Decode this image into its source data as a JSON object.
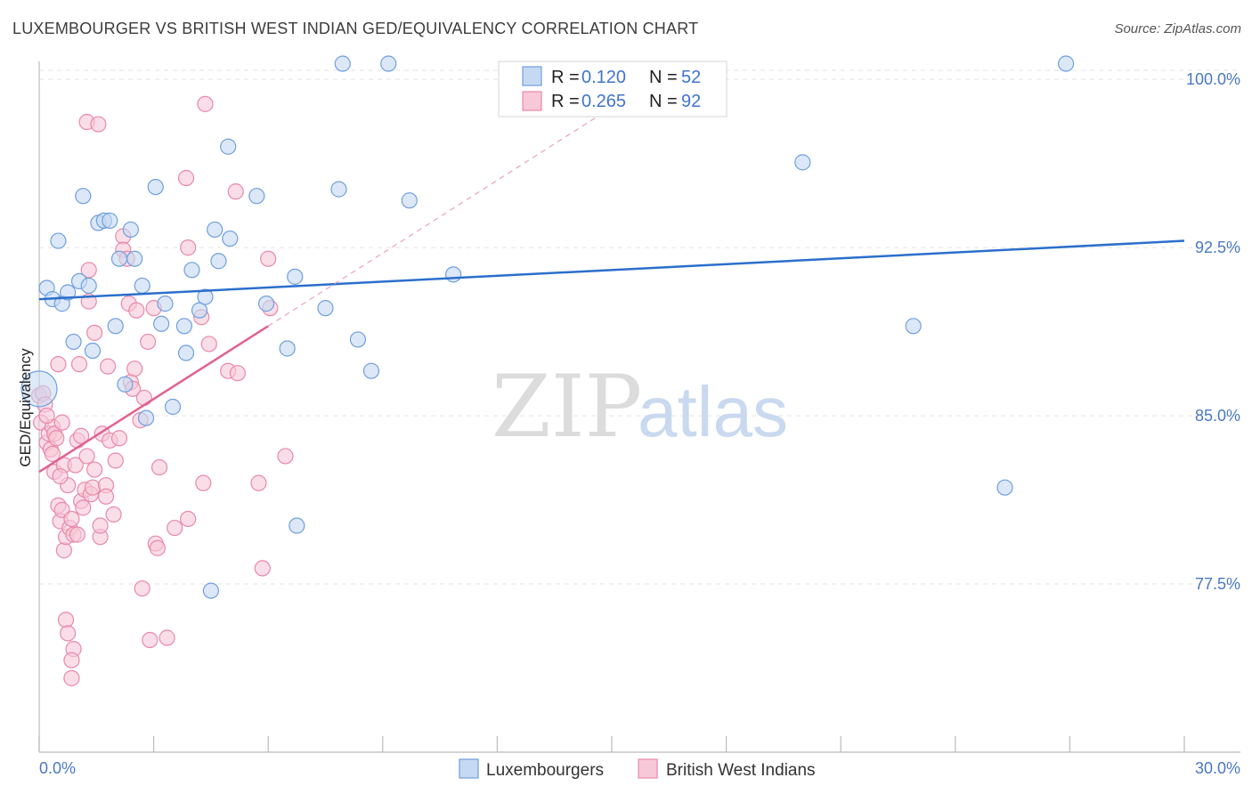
{
  "title": "LUXEMBOURGER VS BRITISH WEST INDIAN GED/EQUIVALENCY CORRELATION CHART",
  "source": "Source: ZipAtlas.com",
  "colors": {
    "blue": "#6f9fde",
    "blue_fill": "#c5d9f2",
    "blue_line": "#2b6fcc",
    "pink": "#e889a9",
    "pink_fill": "#f7c8d7",
    "pink_line": "#e0638c",
    "axis_text": "#4a78c2"
  },
  "chart_data": {
    "type": "scatter",
    "xlabel": "",
    "ylabel": "GED/Equivalency",
    "xlim": [
      0.0,
      30.0
    ],
    "ylim": [
      70.0,
      100.8
    ],
    "x_tick_labels": [
      "0.0%",
      "30.0%"
    ],
    "y_ticks": [
      77.5,
      85.0,
      92.5,
      100.0
    ],
    "y_tick_labels": [
      "77.5%",
      "85.0%",
      "92.5%",
      "100.0%"
    ],
    "watermark": {
      "zip": "ZIP",
      "atlas": "atlas"
    },
    "legend": [
      {
        "r_label": "R =",
        "r_value": "0.120",
        "n_label": "N =",
        "n_value": "52"
      },
      {
        "r_label": "R =",
        "r_value": "0.265",
        "n_label": "N =",
        "n_value": "92"
      }
    ],
    "series": [
      {
        "name": "Luxembourgers",
        "trend": {
          "x": [
            0.0,
            30.0
          ],
          "y": [
            90.2,
            92.8
          ],
          "dashed_to_x": null
        },
        "points": [
          [
            0.0,
            86.2
          ],
          [
            0.2,
            90.7
          ],
          [
            0.35,
            90.2
          ],
          [
            0.5,
            92.8
          ],
          [
            0.6,
            90.0
          ],
          [
            0.75,
            90.5
          ],
          [
            0.9,
            88.3
          ],
          [
            1.05,
            91.0
          ],
          [
            1.15,
            94.8
          ],
          [
            1.3,
            90.8
          ],
          [
            1.4,
            87.9
          ],
          [
            1.55,
            93.6
          ],
          [
            1.7,
            93.7
          ],
          [
            1.85,
            93.7
          ],
          [
            2.0,
            89.0
          ],
          [
            2.1,
            92.0
          ],
          [
            2.25,
            86.4
          ],
          [
            2.4,
            93.3
          ],
          [
            2.5,
            92.0
          ],
          [
            2.7,
            90.8
          ],
          [
            2.8,
            84.9
          ],
          [
            3.05,
            95.2
          ],
          [
            3.2,
            89.1
          ],
          [
            3.3,
            90.0
          ],
          [
            3.5,
            85.4
          ],
          [
            3.8,
            89.0
          ],
          [
            3.85,
            87.8
          ],
          [
            4.0,
            91.5
          ],
          [
            4.2,
            89.7
          ],
          [
            4.35,
            90.3
          ],
          [
            4.5,
            77.2
          ],
          [
            4.6,
            93.3
          ],
          [
            4.7,
            91.9
          ],
          [
            4.95,
            97.0
          ],
          [
            5.0,
            92.9
          ],
          [
            5.7,
            94.8
          ],
          [
            5.95,
            90.0
          ],
          [
            6.5,
            88.0
          ],
          [
            6.7,
            91.2
          ],
          [
            6.75,
            80.1
          ],
          [
            7.5,
            89.8
          ],
          [
            7.85,
            95.1
          ],
          [
            7.95,
            100.7
          ],
          [
            8.35,
            88.4
          ],
          [
            8.7,
            87.0
          ],
          [
            9.15,
            100.7
          ],
          [
            9.7,
            94.6
          ],
          [
            10.85,
            91.3
          ],
          [
            20.0,
            96.3
          ],
          [
            22.9,
            89.0
          ],
          [
            25.3,
            81.8
          ],
          [
            26.9,
            100.7
          ]
        ]
      },
      {
        "name": "British West Indians",
        "trend": {
          "x": [
            0.0,
            6.0
          ],
          "y": [
            82.5,
            89.0
          ],
          "dashed_to_x": 15.0
        },
        "points": [
          [
            0.0,
            85.9
          ],
          [
            0.05,
            84.7
          ],
          [
            0.1,
            86.0
          ],
          [
            0.15,
            85.5
          ],
          [
            0.2,
            83.8
          ],
          [
            0.25,
            84.2
          ],
          [
            0.3,
            83.5
          ],
          [
            0.35,
            84.5
          ],
          [
            0.35,
            83.3
          ],
          [
            0.4,
            84.2
          ],
          [
            0.4,
            82.5
          ],
          [
            0.45,
            84.0
          ],
          [
            0.5,
            81.0
          ],
          [
            0.55,
            80.3
          ],
          [
            0.5,
            87.3
          ],
          [
            0.6,
            80.8
          ],
          [
            0.6,
            84.7
          ],
          [
            0.65,
            79.0
          ],
          [
            0.65,
            82.8
          ],
          [
            0.7,
            79.6
          ],
          [
            0.7,
            75.9
          ],
          [
            0.75,
            81.9
          ],
          [
            0.8,
            80.0
          ],
          [
            0.75,
            75.3
          ],
          [
            0.85,
            80.4
          ],
          [
            0.9,
            79.7
          ],
          [
            0.9,
            74.6
          ],
          [
            0.85,
            74.1
          ],
          [
            0.85,
            73.3
          ],
          [
            0.95,
            82.8
          ],
          [
            1.0,
            79.7
          ],
          [
            1.0,
            83.9
          ],
          [
            1.05,
            87.3
          ],
          [
            1.1,
            81.2
          ],
          [
            1.1,
            84.1
          ],
          [
            1.15,
            80.9
          ],
          [
            1.2,
            81.7
          ],
          [
            1.25,
            83.2
          ],
          [
            1.25,
            98.1
          ],
          [
            1.3,
            90.1
          ],
          [
            1.3,
            91.5
          ],
          [
            1.35,
            81.5
          ],
          [
            1.4,
            81.8
          ],
          [
            1.45,
            82.6
          ],
          [
            1.45,
            88.7
          ],
          [
            1.55,
            98.0
          ],
          [
            1.6,
            79.6
          ],
          [
            1.6,
            80.1
          ],
          [
            1.65,
            84.2
          ],
          [
            1.75,
            81.9
          ],
          [
            1.75,
            81.4
          ],
          [
            1.8,
            87.2
          ],
          [
            1.85,
            83.9
          ],
          [
            1.95,
            80.6
          ],
          [
            2.0,
            83.0
          ],
          [
            2.1,
            84.0
          ],
          [
            2.2,
            93.0
          ],
          [
            2.2,
            92.4
          ],
          [
            2.3,
            92.0
          ],
          [
            2.35,
            90.0
          ],
          [
            2.4,
            86.5
          ],
          [
            2.45,
            86.2
          ],
          [
            2.5,
            87.1
          ],
          [
            2.55,
            89.7
          ],
          [
            2.65,
            84.8
          ],
          [
            2.7,
            77.3
          ],
          [
            2.75,
            85.8
          ],
          [
            2.85,
            88.3
          ],
          [
            2.9,
            75.0
          ],
          [
            3.0,
            89.8
          ],
          [
            3.05,
            79.3
          ],
          [
            3.1,
            79.1
          ],
          [
            3.15,
            82.7
          ],
          [
            3.35,
            75.1
          ],
          [
            3.55,
            80.0
          ],
          [
            3.85,
            95.6
          ],
          [
            3.9,
            80.4
          ],
          [
            3.9,
            92.5
          ],
          [
            4.25,
            89.4
          ],
          [
            4.3,
            82.0
          ],
          [
            4.35,
            98.9
          ],
          [
            4.45,
            88.2
          ],
          [
            4.95,
            87.0
          ],
          [
            5.15,
            95.0
          ],
          [
            5.2,
            86.9
          ],
          [
            5.75,
            82.0
          ],
          [
            5.85,
            78.2
          ],
          [
            6.0,
            92.0
          ],
          [
            6.05,
            89.8
          ],
          [
            6.45,
            83.2
          ],
          [
            0.2,
            85.0
          ],
          [
            0.55,
            82.3
          ]
        ]
      }
    ],
    "bottom_legend": [
      "Luxembourgers",
      "British West Indians"
    ]
  }
}
